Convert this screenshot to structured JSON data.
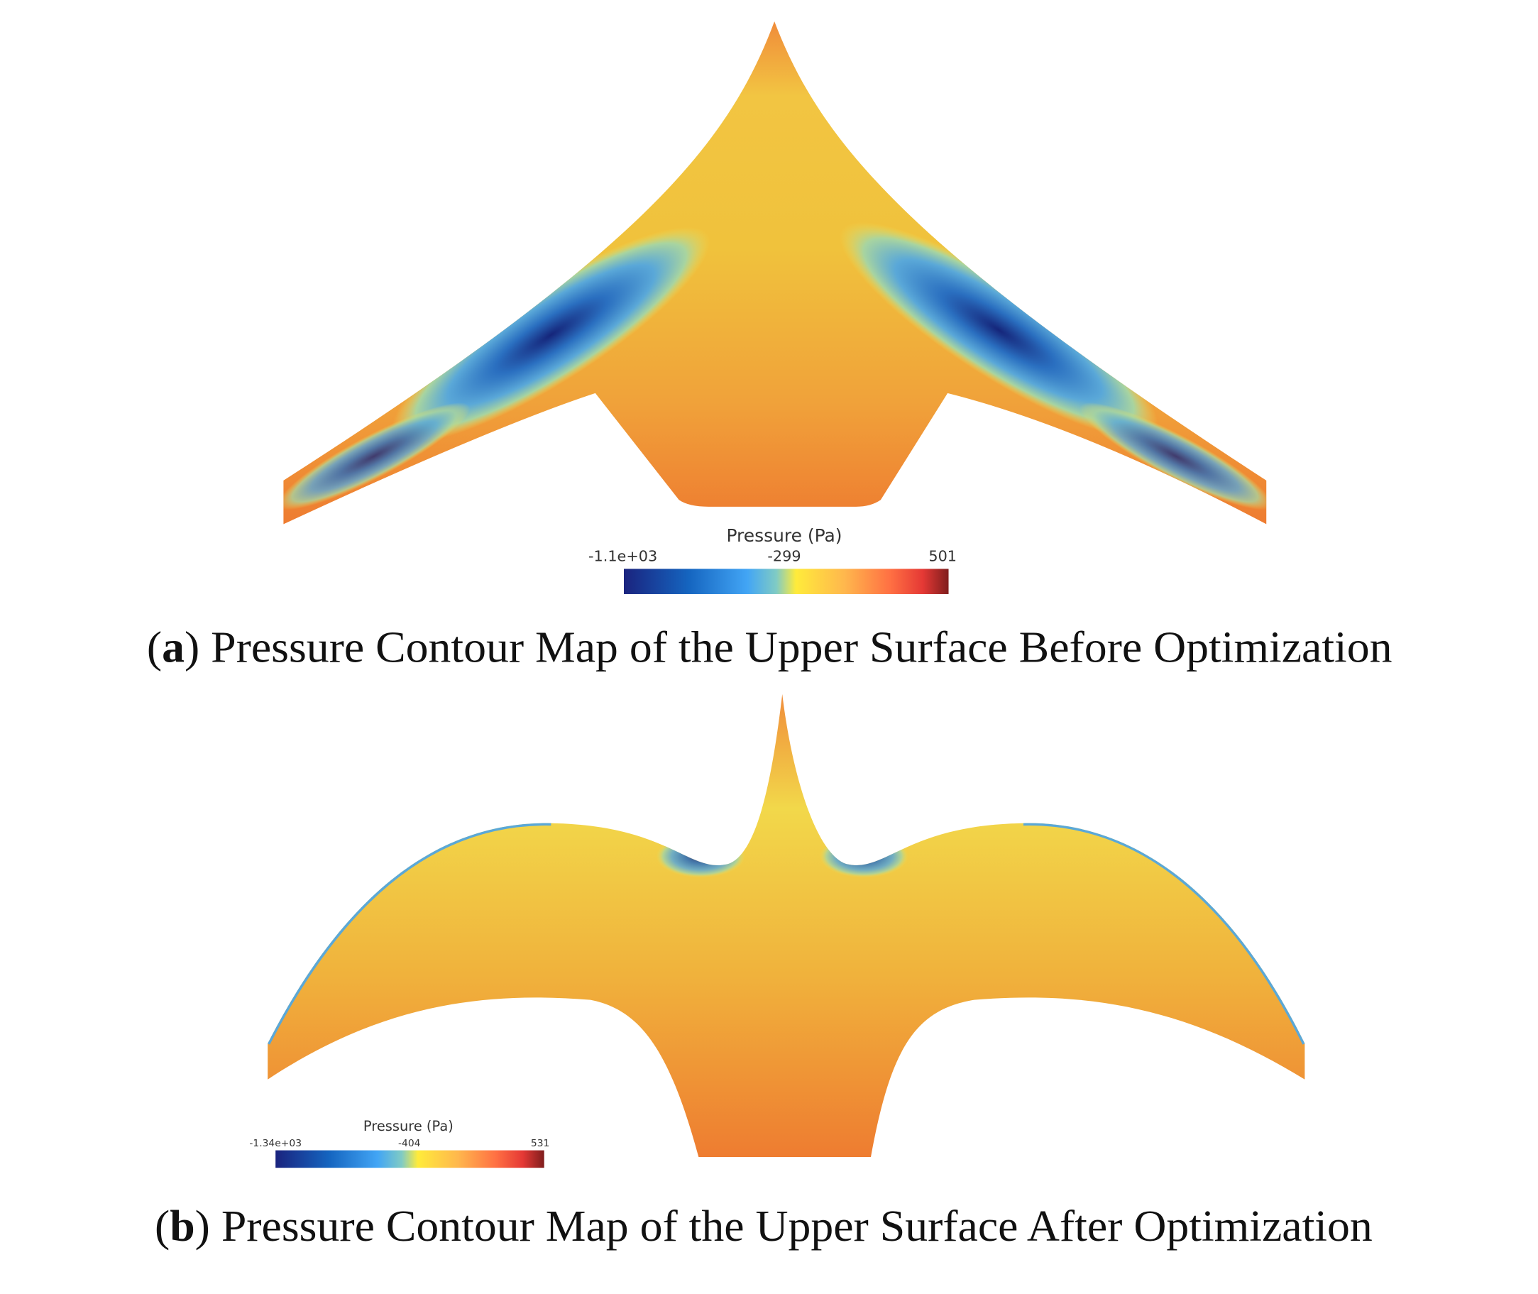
{
  "panels": [
    {
      "caption": [
        {
          "text": "("
        },
        {
          "text": "a",
          "bold": true
        },
        {
          "text": ") Pressure Contour Map of the Upper Surface Before Optimization"
        }
      ],
      "colorbar": {
        "title": "Pressure (Pa)",
        "ticks": [
          "-1.1e+03",
          "-299",
          "501"
        ]
      }
    },
    {
      "caption": [
        {
          "text": "("
        },
        {
          "text": "b",
          "bold": true
        },
        {
          "text": ") Pressure Contour Map of the Upper Surface After Optimization"
        }
      ],
      "colorbar": {
        "title": "Pressure (Pa)",
        "ticks": [
          "-1.34e+03",
          "-404",
          "531"
        ]
      }
    }
  ]
}
